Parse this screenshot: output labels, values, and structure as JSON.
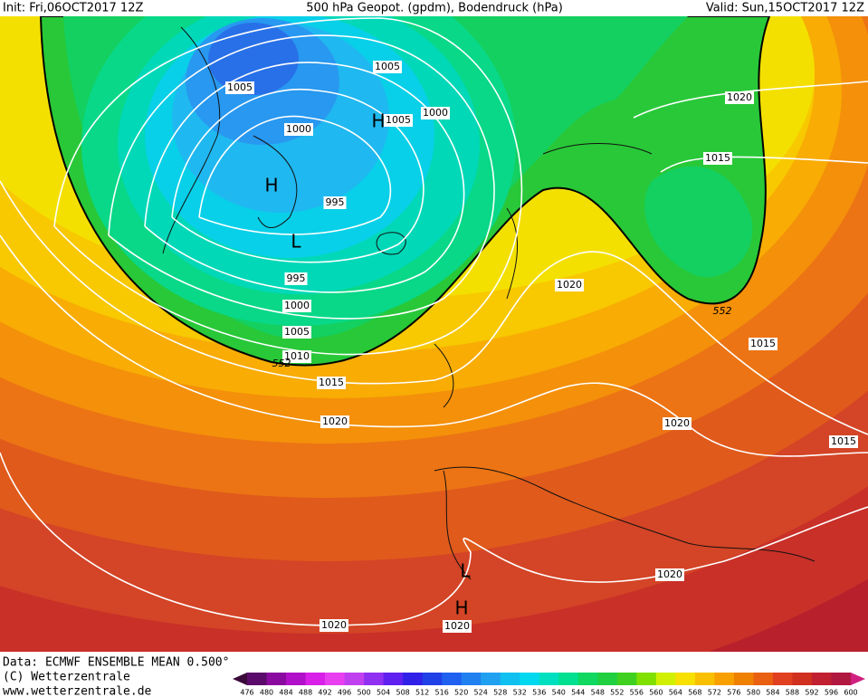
{
  "header": {
    "init": "Init: Fri,06OCT2017 12Z",
    "title": "500 hPa Geopot. (gpdm), Bodendruck (hPa)",
    "valid": "Valid: Sun,15OCT2017 12Z"
  },
  "map": {
    "isobar_labels": [
      "1005",
      "1005",
      "1000",
      "1005",
      "1000",
      "995",
      "995",
      "1000",
      "1005",
      "1010",
      "1015",
      "1020",
      "1020",
      "1015",
      "1020",
      "1015",
      "1020",
      "1015",
      "1020",
      "1020",
      "1020",
      "552",
      "552"
    ],
    "centers": [
      "H",
      "H",
      "L",
      "L",
      "H"
    ]
  },
  "footer": {
    "source": "Data: ECMWF ENSEMBLE MEAN 0.500°",
    "copyright": "(C) Wetterzentrale",
    "url": "www.wetterzentrale.de"
  },
  "colorbar": {
    "labels": [
      476,
      480,
      484,
      488,
      492,
      496,
      500,
      504,
      508,
      512,
      516,
      520,
      524,
      528,
      532,
      536,
      540,
      544,
      548,
      552,
      556,
      560,
      564,
      568,
      572,
      576,
      580,
      584,
      588,
      592,
      596,
      600
    ],
    "colors": [
      "#3a0a3a",
      "#5a0a6a",
      "#8a0aa0",
      "#b010c8",
      "#d820e8",
      "#e840f0",
      "#c040f0",
      "#9030f0",
      "#6020f0",
      "#3020e8",
      "#2040e8",
      "#2060f0",
      "#2080f0",
      "#20a0f0",
      "#10c0f0",
      "#00d8f0",
      "#00e0c0",
      "#00e090",
      "#10d860",
      "#20d040",
      "#40d020",
      "#80e000",
      "#d0f000",
      "#f8e000",
      "#f8c000",
      "#f8a000",
      "#f08000",
      "#e86010",
      "#e04020",
      "#d03020",
      "#c02030",
      "#b01840",
      "#d02080"
    ]
  }
}
